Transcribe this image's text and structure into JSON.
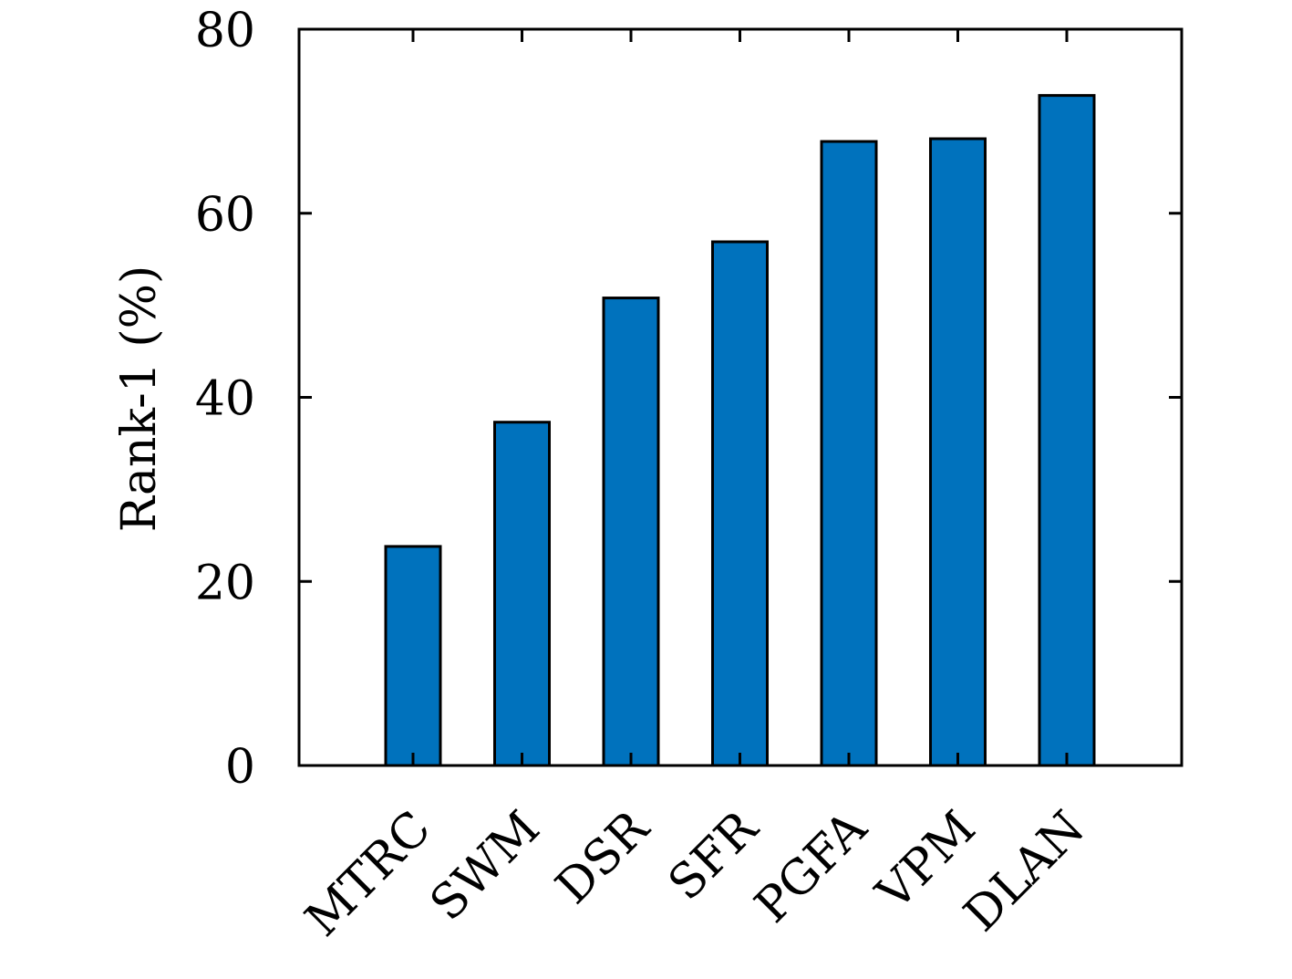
{
  "chart_data": {
    "type": "bar",
    "title": "",
    "xlabel": "",
    "ylabel": "Rank-1 (%)",
    "categories": [
      "MTRC",
      "SWM",
      "DSR",
      "SFR",
      "PGFA",
      "VPM",
      "DLAN"
    ],
    "values": [
      23.8,
      37.3,
      50.8,
      56.9,
      67.8,
      68.1,
      72.8
    ],
    "ylim": [
      0,
      80
    ],
    "yticks": [
      0,
      20,
      40,
      60,
      80
    ],
    "ytick_labels": [
      "0",
      "20",
      "40",
      "60",
      "80"
    ],
    "grid": false,
    "legend": "none",
    "bar_color": "#0072BD",
    "edge_color": "#000000"
  }
}
